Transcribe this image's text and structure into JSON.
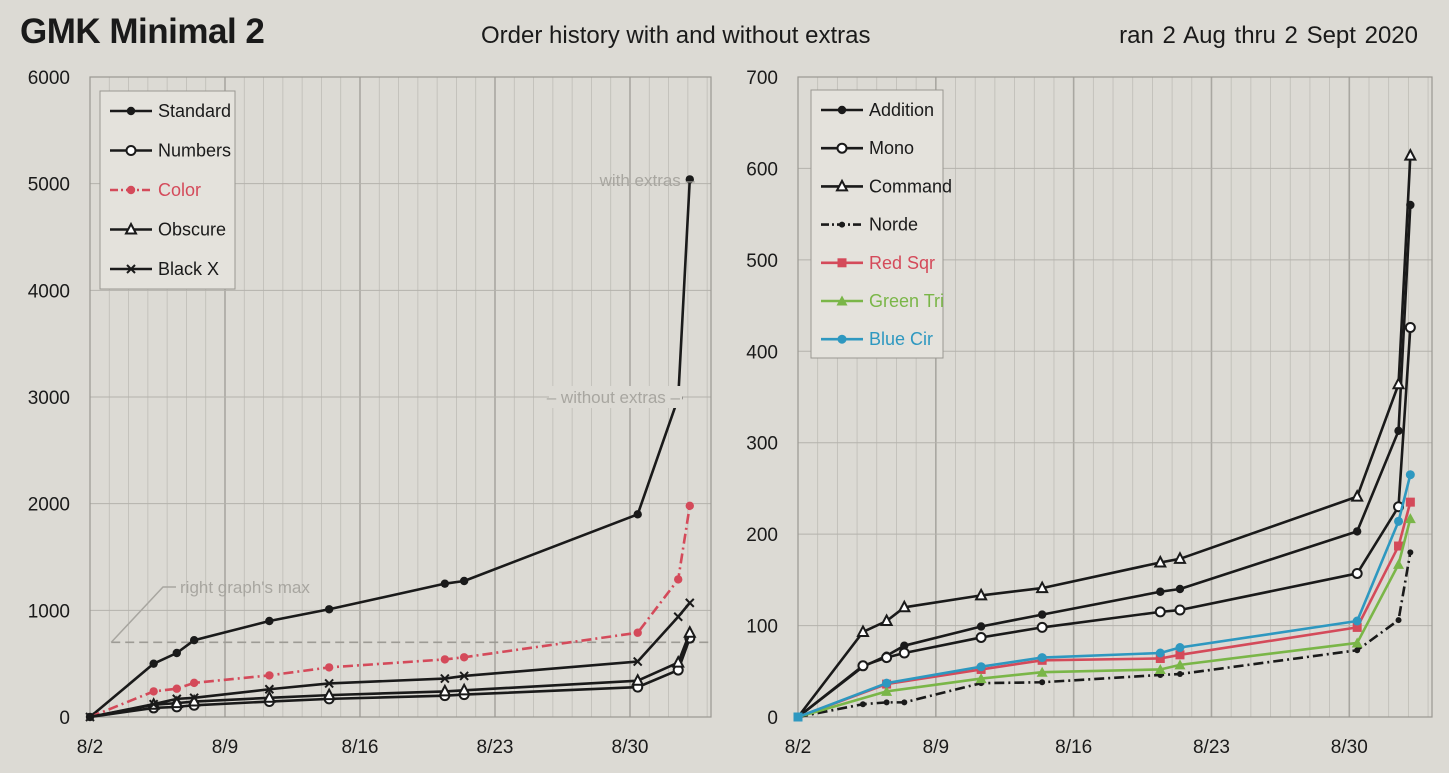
{
  "header": {
    "title": "GMK Minimal 2",
    "subtitle": "Order history with and without extras",
    "date_range": "ran  2 Aug  thru  2 Sept  2020"
  },
  "colors": {
    "black": "#1a1a1a",
    "red": "#d44a5a",
    "green": "#7ab648",
    "blue": "#2e98c0",
    "annot": "#a8a6a0"
  },
  "chart_data": [
    {
      "type": "line",
      "x_ticks": [
        "8/2",
        "8/9",
        "8/16",
        "8/23",
        "8/30"
      ],
      "y_ticks": [
        "0",
        "1000",
        "2000",
        "3000",
        "4000",
        "5000",
        "6000"
      ],
      "xlim": [
        0,
        32.2
      ],
      "ylim": [
        0,
        6000
      ],
      "legend_position": "top-left",
      "series": [
        {
          "name": "Standard",
          "color": "#1a1a1a",
          "marker": "dot",
          "dash": "solid",
          "points": [
            [
              0,
              0
            ],
            [
              3.3,
              500
            ],
            [
              4.5,
              600
            ],
            [
              5.4,
              720
            ],
            [
              9.3,
              900
            ],
            [
              12.4,
              1010
            ],
            [
              18.4,
              1250
            ],
            [
              19.4,
              1275
            ],
            [
              28.4,
              1900
            ],
            [
              30.5,
              2990
            ],
            [
              31.1,
              5040
            ]
          ]
        },
        {
          "name": "Numbers",
          "color": "#1a1a1a",
          "marker": "circle",
          "dash": "solid",
          "points": [
            [
              0,
              0
            ],
            [
              3.3,
              85
            ],
            [
              4.5,
              95
            ],
            [
              5.4,
              110
            ],
            [
              9.3,
              145
            ],
            [
              12.4,
              170
            ],
            [
              18.4,
              200
            ],
            [
              19.4,
              210
            ],
            [
              28.4,
              280
            ],
            [
              30.5,
              440
            ],
            [
              31.1,
              740
            ]
          ]
        },
        {
          "name": "Color",
          "color": "#d44a5a",
          "marker": "dot",
          "dash": "dashdot",
          "points": [
            [
              0,
              0
            ],
            [
              3.3,
              240
            ],
            [
              4.5,
              265
            ],
            [
              5.4,
              320
            ],
            [
              9.3,
              390
            ],
            [
              12.4,
              465
            ],
            [
              18.4,
              540
            ],
            [
              19.4,
              560
            ],
            [
              28.4,
              790
            ],
            [
              30.5,
              1290
            ],
            [
              31.1,
              1980
            ]
          ]
        },
        {
          "name": "Obscure",
          "color": "#1a1a1a",
          "marker": "triangle",
          "dash": "solid",
          "points": [
            [
              0,
              0
            ],
            [
              3.3,
              115
            ],
            [
              4.5,
              130
            ],
            [
              5.4,
              145
            ],
            [
              9.3,
              180
            ],
            [
              12.4,
              205
            ],
            [
              18.4,
              240
            ],
            [
              19.4,
              250
            ],
            [
              28.4,
              340
            ],
            [
              30.5,
              510
            ],
            [
              31.1,
              790
            ]
          ]
        },
        {
          "name": "Black X",
          "color": "#1a1a1a",
          "marker": "x",
          "dash": "solid",
          "points": [
            [
              0,
              0
            ],
            [
              3.3,
              120
            ],
            [
              4.5,
              170
            ],
            [
              5.4,
              180
            ],
            [
              9.3,
              260
            ],
            [
              12.4,
              315
            ],
            [
              18.4,
              360
            ],
            [
              19.4,
              385
            ],
            [
              28.4,
              520
            ],
            [
              30.5,
              940
            ],
            [
              31.1,
              1070
            ]
          ]
        }
      ],
      "annotations": [
        "with extras",
        "without extras",
        "right graph's max"
      ],
      "reference_line_y": 700
    },
    {
      "type": "line",
      "x_ticks": [
        "8/2",
        "8/9",
        "8/16",
        "8/23",
        "8/30"
      ],
      "y_ticks": [
        "0",
        "100",
        "200",
        "300",
        "400",
        "500",
        "600",
        "700"
      ],
      "xlim": [
        0,
        32.2
      ],
      "ylim": [
        0,
        700
      ],
      "legend_position": "top-left",
      "series": [
        {
          "name": "Addition",
          "color": "#1a1a1a",
          "marker": "dot",
          "dash": "solid",
          "points": [
            [
              0,
              0
            ],
            [
              3.3,
              55
            ],
            [
              4.5,
              67
            ],
            [
              5.4,
              78
            ],
            [
              9.3,
              99
            ],
            [
              12.4,
              112
            ],
            [
              18.4,
              137
            ],
            [
              19.4,
              140
            ],
            [
              28.4,
              203
            ],
            [
              30.5,
              313
            ],
            [
              31.1,
              560
            ]
          ]
        },
        {
          "name": "Mono",
          "color": "#1a1a1a",
          "marker": "circle",
          "dash": "solid",
          "points": [
            [
              0,
              0
            ],
            [
              3.3,
              56
            ],
            [
              4.5,
              65
            ],
            [
              5.4,
              70
            ],
            [
              9.3,
              87
            ],
            [
              12.4,
              98
            ],
            [
              18.4,
              115
            ],
            [
              19.4,
              117
            ],
            [
              28.4,
              157
            ],
            [
              30.5,
              230
            ],
            [
              31.1,
              426
            ]
          ]
        },
        {
          "name": "Command",
          "color": "#1a1a1a",
          "marker": "triangle",
          "dash": "solid",
          "points": [
            [
              0,
              0
            ],
            [
              3.3,
              93
            ],
            [
              4.5,
              105
            ],
            [
              5.4,
              120
            ],
            [
              9.3,
              133
            ],
            [
              12.4,
              141
            ],
            [
              18.4,
              169
            ],
            [
              19.4,
              173
            ],
            [
              28.4,
              241
            ],
            [
              30.5,
              364
            ],
            [
              31.1,
              614
            ]
          ]
        },
        {
          "name": "Norde",
          "color": "#1a1a1a",
          "marker": "smalldot",
          "dash": "dashdot",
          "points": [
            [
              0,
              0
            ],
            [
              3.3,
              14
            ],
            [
              4.5,
              16
            ],
            [
              5.4,
              16
            ],
            [
              9.3,
              37
            ],
            [
              12.4,
              38
            ],
            [
              18.4,
              46
            ],
            [
              19.4,
              47
            ],
            [
              28.4,
              73
            ],
            [
              30.5,
              106
            ],
            [
              31.1,
              180
            ]
          ]
        },
        {
          "name": "Red Sqr",
          "color": "#d44a5a",
          "marker": "square",
          "dash": "solid",
          "points": [
            [
              0,
              0
            ],
            [
              4.5,
              36
            ],
            [
              9.3,
              52
            ],
            [
              12.4,
              62
            ],
            [
              18.4,
              64
            ],
            [
              19.4,
              68
            ],
            [
              28.4,
              98
            ],
            [
              30.5,
              187
            ],
            [
              31.1,
              235
            ]
          ]
        },
        {
          "name": "Green Tri",
          "color": "#7ab648",
          "marker": "filltriangle",
          "dash": "solid",
          "points": [
            [
              0,
              0
            ],
            [
              4.5,
              28
            ],
            [
              9.3,
              42
            ],
            [
              12.4,
              49
            ],
            [
              18.4,
              52
            ],
            [
              19.4,
              57
            ],
            [
              28.4,
              81
            ],
            [
              30.5,
              167
            ],
            [
              31.1,
              217
            ]
          ]
        },
        {
          "name": "Blue Cir",
          "color": "#2e98c0",
          "marker": "filldot",
          "dash": "solid",
          "points": [
            [
              0,
              0
            ],
            [
              4.5,
              37
            ],
            [
              9.3,
              55
            ],
            [
              12.4,
              65
            ],
            [
              18.4,
              70
            ],
            [
              19.4,
              76
            ],
            [
              28.4,
              105
            ],
            [
              30.5,
              214
            ],
            [
              31.1,
              265
            ]
          ]
        }
      ]
    }
  ]
}
